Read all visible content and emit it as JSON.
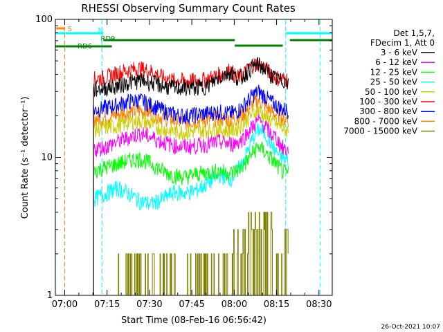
{
  "chart_data": {
    "type": "line",
    "title": "RHESSI Observing Summary Count Rates",
    "xlabel": "Start Time (08-Feb-16 06:56:42)",
    "ylabel": "Count Rate (s⁻¹ detector⁻¹)",
    "yscale": "log",
    "ylim": [
      1,
      100
    ],
    "xlim_minutes": [
      0,
      98
    ],
    "x_tick_labels": [
      "07:00",
      "07:15",
      "07:30",
      "07:45",
      "08:00",
      "08:15",
      "08:30"
    ],
    "y_tick_labels": [
      "1",
      "10",
      "100"
    ],
    "footer_timestamp": "26-Oct-2021 10:07",
    "legend": {
      "header": [
        "Det 1,5,7,",
        "FDecim 1, Att 0"
      ],
      "placement": "right"
    },
    "series": [
      {
        "name": "3 - 6 keV",
        "color": "#000000",
        "x": [
          13.5,
          18,
          22,
          26,
          30,
          34,
          38,
          42,
          46,
          50,
          54,
          58,
          62,
          64,
          66,
          68,
          70,
          72,
          74,
          76,
          78,
          80,
          82.5
        ],
        "y": [
          31,
          32,
          33,
          35,
          36,
          35,
          33,
          32,
          32,
          32,
          33,
          38,
          42,
          38,
          38,
          42,
          46,
          47,
          44,
          40,
          37,
          36,
          36
        ]
      },
      {
        "name": "6 - 12 keV",
        "color": "#ff00ff",
        "x": [
          13.5,
          18,
          22,
          26,
          30,
          34,
          38,
          42,
          46,
          50,
          54,
          58,
          62,
          64,
          66,
          68,
          70,
          72,
          74,
          76,
          78,
          80,
          82.5
        ],
        "y": [
          11.5,
          12,
          13,
          14,
          15,
          14,
          13,
          12.2,
          12,
          12.2,
          12.5,
          13,
          12.5,
          12.8,
          13.5,
          15,
          17,
          18.5,
          17,
          15,
          14,
          12,
          11
        ]
      },
      {
        "name": "12 - 25 keV",
        "color": "#00ff00",
        "x": [
          13.5,
          18,
          22,
          26,
          30,
          34,
          38,
          42,
          46,
          50,
          54,
          58,
          62,
          64,
          66,
          68,
          70,
          72,
          74,
          76,
          78,
          80,
          82.5
        ],
        "y": [
          8,
          8.5,
          9,
          9.5,
          9.8,
          9,
          8,
          7.4,
          7.2,
          7.6,
          7.8,
          8,
          7.7,
          8,
          8.5,
          9.5,
          11,
          12,
          11,
          10,
          9,
          8,
          7.5
        ]
      },
      {
        "name": "25 - 50 keV",
        "color": "#00ffff",
        "x": [
          13.5,
          18,
          22,
          26,
          30,
          34,
          38,
          42,
          46,
          50,
          54,
          58,
          62,
          64,
          66,
          68,
          70,
          72,
          74,
          76,
          78,
          80,
          82.5
        ],
        "y": [
          5,
          5.5,
          6,
          5.5,
          4.8,
          4.6,
          5,
          5.6,
          5.5,
          5.8,
          6.5,
          7.5,
          7,
          7.8,
          9,
          11,
          14,
          16,
          15,
          13,
          11,
          10,
          9.5
        ]
      },
      {
        "name": "50 - 100 keV",
        "color": "#cccc00",
        "x": [
          13.5,
          18,
          22,
          26,
          30,
          34,
          38,
          42,
          46,
          50,
          54,
          58,
          62,
          64,
          66,
          68,
          70,
          72,
          74,
          76,
          78,
          80,
          82.5
        ],
        "y": [
          16,
          16.5,
          17,
          18,
          18.5,
          17.5,
          16,
          15.5,
          15.3,
          15.5,
          15.8,
          16,
          15.7,
          16.2,
          17.2,
          19,
          21,
          22,
          20,
          18.5,
          17.5,
          16.5,
          15.5
        ]
      },
      {
        "name": "100 - 300 keV",
        "color": "#ff0000",
        "x": [
          13.5,
          18,
          22,
          26,
          30,
          34,
          38,
          42,
          46,
          50,
          54,
          58,
          62,
          64,
          66,
          68,
          70,
          72,
          74,
          76,
          78,
          80,
          82.5
        ],
        "y": [
          37,
          38,
          41,
          43,
          44,
          42,
          38,
          36,
          36,
          36,
          37,
          40,
          43,
          38,
          39,
          43,
          47,
          48,
          45,
          41,
          38,
          37,
          37
        ]
      },
      {
        "name": "300 - 800 keV",
        "color": "#0000ff",
        "x": [
          13.5,
          18,
          22,
          26,
          30,
          34,
          38,
          42,
          46,
          50,
          54,
          58,
          62,
          64,
          66,
          68,
          70,
          72,
          74,
          76,
          78,
          80,
          82.5
        ],
        "y": [
          22,
          23,
          24,
          25.5,
          26,
          24,
          22,
          20.5,
          20,
          20.5,
          21,
          21.5,
          20.8,
          21.5,
          23,
          25.5,
          28.5,
          30,
          28,
          25.5,
          24,
          22.5,
          22
        ]
      },
      {
        "name": "800 - 7000 keV",
        "color": "#ff8000",
        "x": [
          13.5,
          18,
          22,
          26,
          30,
          34,
          38,
          42,
          46,
          50,
          54,
          58,
          62,
          64,
          66,
          68,
          70,
          72,
          74,
          76,
          78,
          80,
          82.5
        ],
        "y": [
          19,
          19.5,
          20.5,
          21.5,
          22,
          21,
          19.5,
          18.5,
          18.2,
          18.5,
          18.8,
          19.2,
          18.6,
          19.2,
          20.3,
          22,
          24.5,
          26,
          24,
          22,
          20.5,
          19.5,
          19
        ]
      },
      {
        "name": "7000 - 15000 keV",
        "color": "#808000",
        "x": [
          21,
          26,
          31,
          36,
          41,
          46,
          50,
          56,
          60,
          64,
          68,
          71,
          74,
          77,
          80,
          82.5
        ],
        "y": [
          1.2,
          1.5,
          1.5,
          1.4,
          1.2,
          1.1,
          1.2,
          1.2,
          1.6,
          2,
          2.4,
          2.7,
          3,
          2.6,
          2.3,
          2
        ]
      }
    ],
    "flags": [
      {
        "label": "S",
        "color": "#ff8000",
        "start_min": 0.3,
        "end_min": 3.3
      },
      {
        "label": "N",
        "color": "#00ffff",
        "start_min": 0,
        "end_min": 17
      },
      {
        "label": "",
        "color": "#00ffff",
        "start_min": 81.5,
        "end_min": 98
      },
      {
        "label": "RD9",
        "color": "#008000",
        "start_min": 17,
        "end_min": 63.5
      },
      {
        "label": "",
        "color": "#008000",
        "start_min": 63.5,
        "end_min": 80.5
      },
      {
        "label": "",
        "color": "#008000",
        "start_min": 83,
        "end_min": 98
      },
      {
        "label": "RD6",
        "color": "#008000",
        "start_min": 0,
        "end_min": 20
      }
    ],
    "vlines": [
      {
        "min": 3.3,
        "color": "#ff8000"
      },
      {
        "min": 16.5,
        "color": "#00ffff"
      },
      {
        "min": 81.5,
        "color": "#00ffff"
      },
      {
        "min": 93.8,
        "color": "#00ffff"
      }
    ],
    "grid": false
  }
}
